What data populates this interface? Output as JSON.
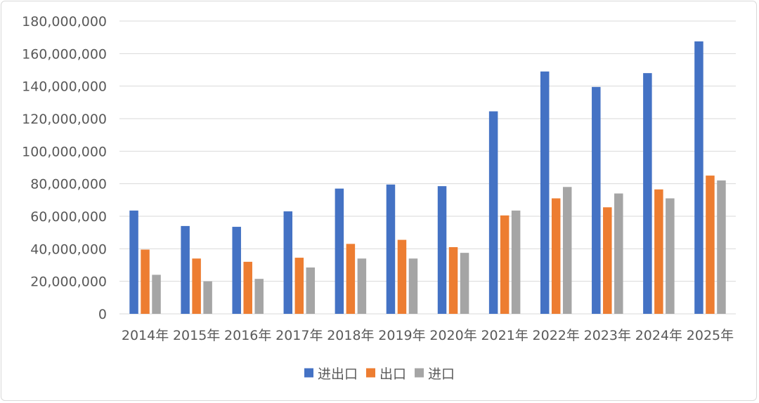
{
  "chart_data": {
    "type": "bar",
    "categories": [
      "2014年",
      "2015年",
      "2016年",
      "2017年",
      "2018年",
      "2019年",
      "2020年",
      "2021年",
      "2022年",
      "2023年",
      "2024年",
      "2025年"
    ],
    "series": [
      {
        "name": "进出口",
        "color": "#4472c4",
        "values": [
          63500000,
          54000000,
          53500000,
          63000000,
          77000000,
          79500000,
          78500000,
          124500000,
          149000000,
          139500000,
          148000000,
          167500000
        ]
      },
      {
        "name": "出口",
        "color": "#ed7d31",
        "values": [
          39500000,
          34000000,
          32000000,
          34500000,
          43000000,
          45500000,
          41000000,
          60500000,
          71000000,
          65500000,
          76500000,
          85000000
        ]
      },
      {
        "name": "进口",
        "color": "#a5a5a5",
        "values": [
          24000000,
          20000000,
          21500000,
          28500000,
          34000000,
          34000000,
          37500000,
          63500000,
          78000000,
          74000000,
          71000000,
          82000000
        ]
      }
    ],
    "y_ticks": [
      "0",
      "20,000,000",
      "40,000,000",
      "60,000,000",
      "80,000,000",
      "100,000,000",
      "120,000,000",
      "140,000,000",
      "160,000,000",
      "180,000,000"
    ],
    "ylim": [
      0,
      180000000
    ],
    "grid": true,
    "legend_position": "bottom"
  }
}
